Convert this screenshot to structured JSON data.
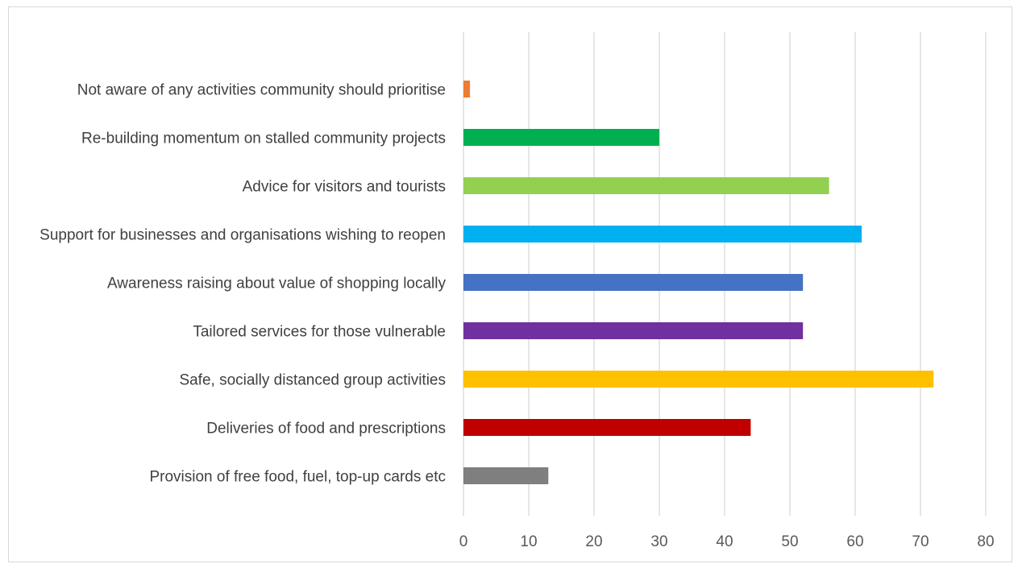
{
  "chart_data": {
    "type": "bar",
    "orientation": "horizontal",
    "title": "",
    "xlabel": "",
    "ylabel": "",
    "xlim": [
      0,
      80
    ],
    "ticks": [
      "0",
      "10",
      "20",
      "30",
      "40",
      "50",
      "60",
      "70",
      "80"
    ],
    "grid": "vertical",
    "legend": "none",
    "categories": [
      "Not aware of any activities community should prioritise",
      "Re-building momentum on stalled community projects",
      "Advice for visitors and tourists",
      "Support for businesses and organisations wishing to reopen",
      "Awareness raising about value of shopping locally",
      "Tailored services for those vulnerable",
      "Safe, socially distanced group activities",
      "Deliveries of food and prescriptions",
      "Provision of free food, fuel, top-up cards etc"
    ],
    "values": [
      1,
      30,
      56,
      61,
      52,
      52,
      72,
      44,
      13
    ],
    "colors": [
      "#ed7d31",
      "#00b050",
      "#92d050",
      "#00b0f0",
      "#4472c4",
      "#7030a0",
      "#ffc000",
      "#c00000",
      "#7f7f7f"
    ]
  }
}
